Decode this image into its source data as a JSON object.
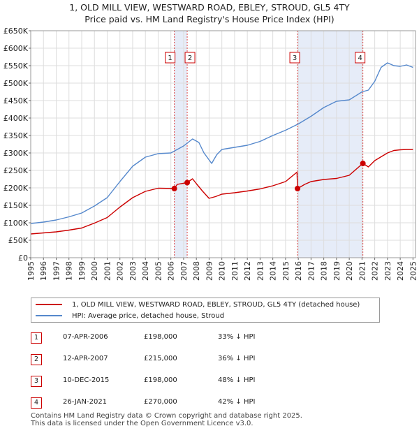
{
  "title": "1, OLD MILL VIEW, WESTWARD ROAD, EBLEY, STROUD, GL5 4TY",
  "subtitle": "Price paid vs. HM Land Registry's House Price Index (HPI)",
  "chart_data": {
    "type": "line",
    "title": "1, OLD MILL VIEW, WESTWARD ROAD, EBLEY, STROUD, GL5 4TY",
    "subtitle": "Price paid vs. HM Land Registry's House Price Index (HPI)",
    "xlim": [
      1995,
      2025.2
    ],
    "ylim": [
      0,
      650000
    ],
    "xticks": [
      "1995",
      "1996",
      "1997",
      "1998",
      "1999",
      "2000",
      "2001",
      "2002",
      "2003",
      "2004",
      "2005",
      "2006",
      "2007",
      "2008",
      "2009",
      "2010",
      "2011",
      "2012",
      "2013",
      "2014",
      "2015",
      "2016",
      "2017",
      "2018",
      "2019",
      "2020",
      "2021",
      "2022",
      "2023",
      "2024",
      "2025"
    ],
    "yticks": [
      "£0",
      "£50K",
      "£100K",
      "£150K",
      "£200K",
      "£250K",
      "£300K",
      "£350K",
      "£400K",
      "£450K",
      "£500K",
      "£550K",
      "£600K",
      "£650K"
    ],
    "grid": true,
    "series": [
      {
        "name": "1, OLD MILL VIEW, WESTWARD ROAD, EBLEY, STROUD, GL5 4TY (detached house)",
        "color": "#cc0000",
        "x": [
          1995.0,
          1996.0,
          1997.0,
          1998.0,
          1999.0,
          2000.0,
          2001.0,
          2002.0,
          2003.0,
          2004.0,
          2005.0,
          2006.27,
          2006.5,
          2007.28,
          2007.7,
          2008.0,
          2008.5,
          2009.0,
          2009.5,
          2010.0,
          2011.0,
          2012.0,
          2013.0,
          2014.0,
          2015.0,
          2015.9,
          2015.94,
          2016.5,
          2017.0,
          2018.0,
          2019.0,
          2020.0,
          2021.07,
          2021.5,
          2022.0,
          2022.5,
          2023.0,
          2023.5,
          2024.0,
          2024.5,
          2025.0
        ],
        "y": [
          68000,
          71000,
          74000,
          79000,
          85000,
          99000,
          115000,
          145000,
          172000,
          190000,
          199000,
          198000,
          210000,
          215000,
          226000,
          212000,
          190000,
          170000,
          175000,
          182000,
          186000,
          191000,
          197000,
          206000,
          218000,
          245000,
          198000,
          210000,
          218000,
          224000,
          227000,
          236000,
          270000,
          260000,
          278000,
          289000,
          300000,
          307000,
          309000,
          310000,
          310000
        ]
      },
      {
        "name": "HPI: Average price, detached house, Stroud",
        "color": "#5588cc",
        "x": [
          1995.0,
          1996.0,
          1997.0,
          1998.0,
          1999.0,
          2000.0,
          2001.0,
          2002.0,
          2003.0,
          2004.0,
          2005.0,
          2006.0,
          2007.0,
          2007.7,
          2008.2,
          2008.6,
          2009.2,
          2009.6,
          2010.0,
          2011.0,
          2012.0,
          2013.0,
          2014.0,
          2015.0,
          2016.0,
          2017.0,
          2018.0,
          2019.0,
          2020.0,
          2021.0,
          2021.5,
          2022.0,
          2022.5,
          2023.0,
          2023.5,
          2024.0,
          2024.5,
          2025.0
        ],
        "y": [
          98000,
          102000,
          108000,
          117000,
          128000,
          148000,
          172000,
          218000,
          262000,
          288000,
          298000,
          300000,
          320000,
          340000,
          330000,
          300000,
          270000,
          295000,
          310000,
          316000,
          322000,
          333000,
          350000,
          365000,
          383000,
          405000,
          430000,
          448000,
          452000,
          475000,
          480000,
          505000,
          545000,
          558000,
          550000,
          548000,
          552000,
          545000
        ]
      }
    ],
    "sale_markers": [
      {
        "label": "1",
        "x": 2006.27,
        "y": 198000
      },
      {
        "label": "2",
        "x": 2007.28,
        "y": 215000
      },
      {
        "label": "3",
        "x": 2015.94,
        "y": 198000
      },
      {
        "label": "4",
        "x": 2021.07,
        "y": 270000
      }
    ],
    "shaded_ranges": [
      [
        2006.27,
        2007.28
      ],
      [
        2015.94,
        2021.07
      ]
    ]
  },
  "legend": {
    "property": "1, OLD MILL VIEW, WESTWARD ROAD, EBLEY, STROUD, GL5 4TY (detached house)",
    "hpi": "HPI: Average price, detached house, Stroud",
    "property_color": "#cc0000",
    "hpi_color": "#5588cc"
  },
  "sales": [
    {
      "num": "1",
      "date": "07-APR-2006",
      "price": "£198,000",
      "hpi": "33% ↓ HPI"
    },
    {
      "num": "2",
      "date": "12-APR-2007",
      "price": "£215,000",
      "hpi": "36% ↓ HPI"
    },
    {
      "num": "3",
      "date": "10-DEC-2015",
      "price": "£198,000",
      "hpi": "48% ↓ HPI"
    },
    {
      "num": "4",
      "date": "26-JAN-2021",
      "price": "£270,000",
      "hpi": "42% ↓ HPI"
    }
  ],
  "footer": {
    "line1": "Contains HM Land Registry data © Crown copyright and database right 2025.",
    "line2": "This data is licensed under the Open Government Licence v3.0."
  }
}
